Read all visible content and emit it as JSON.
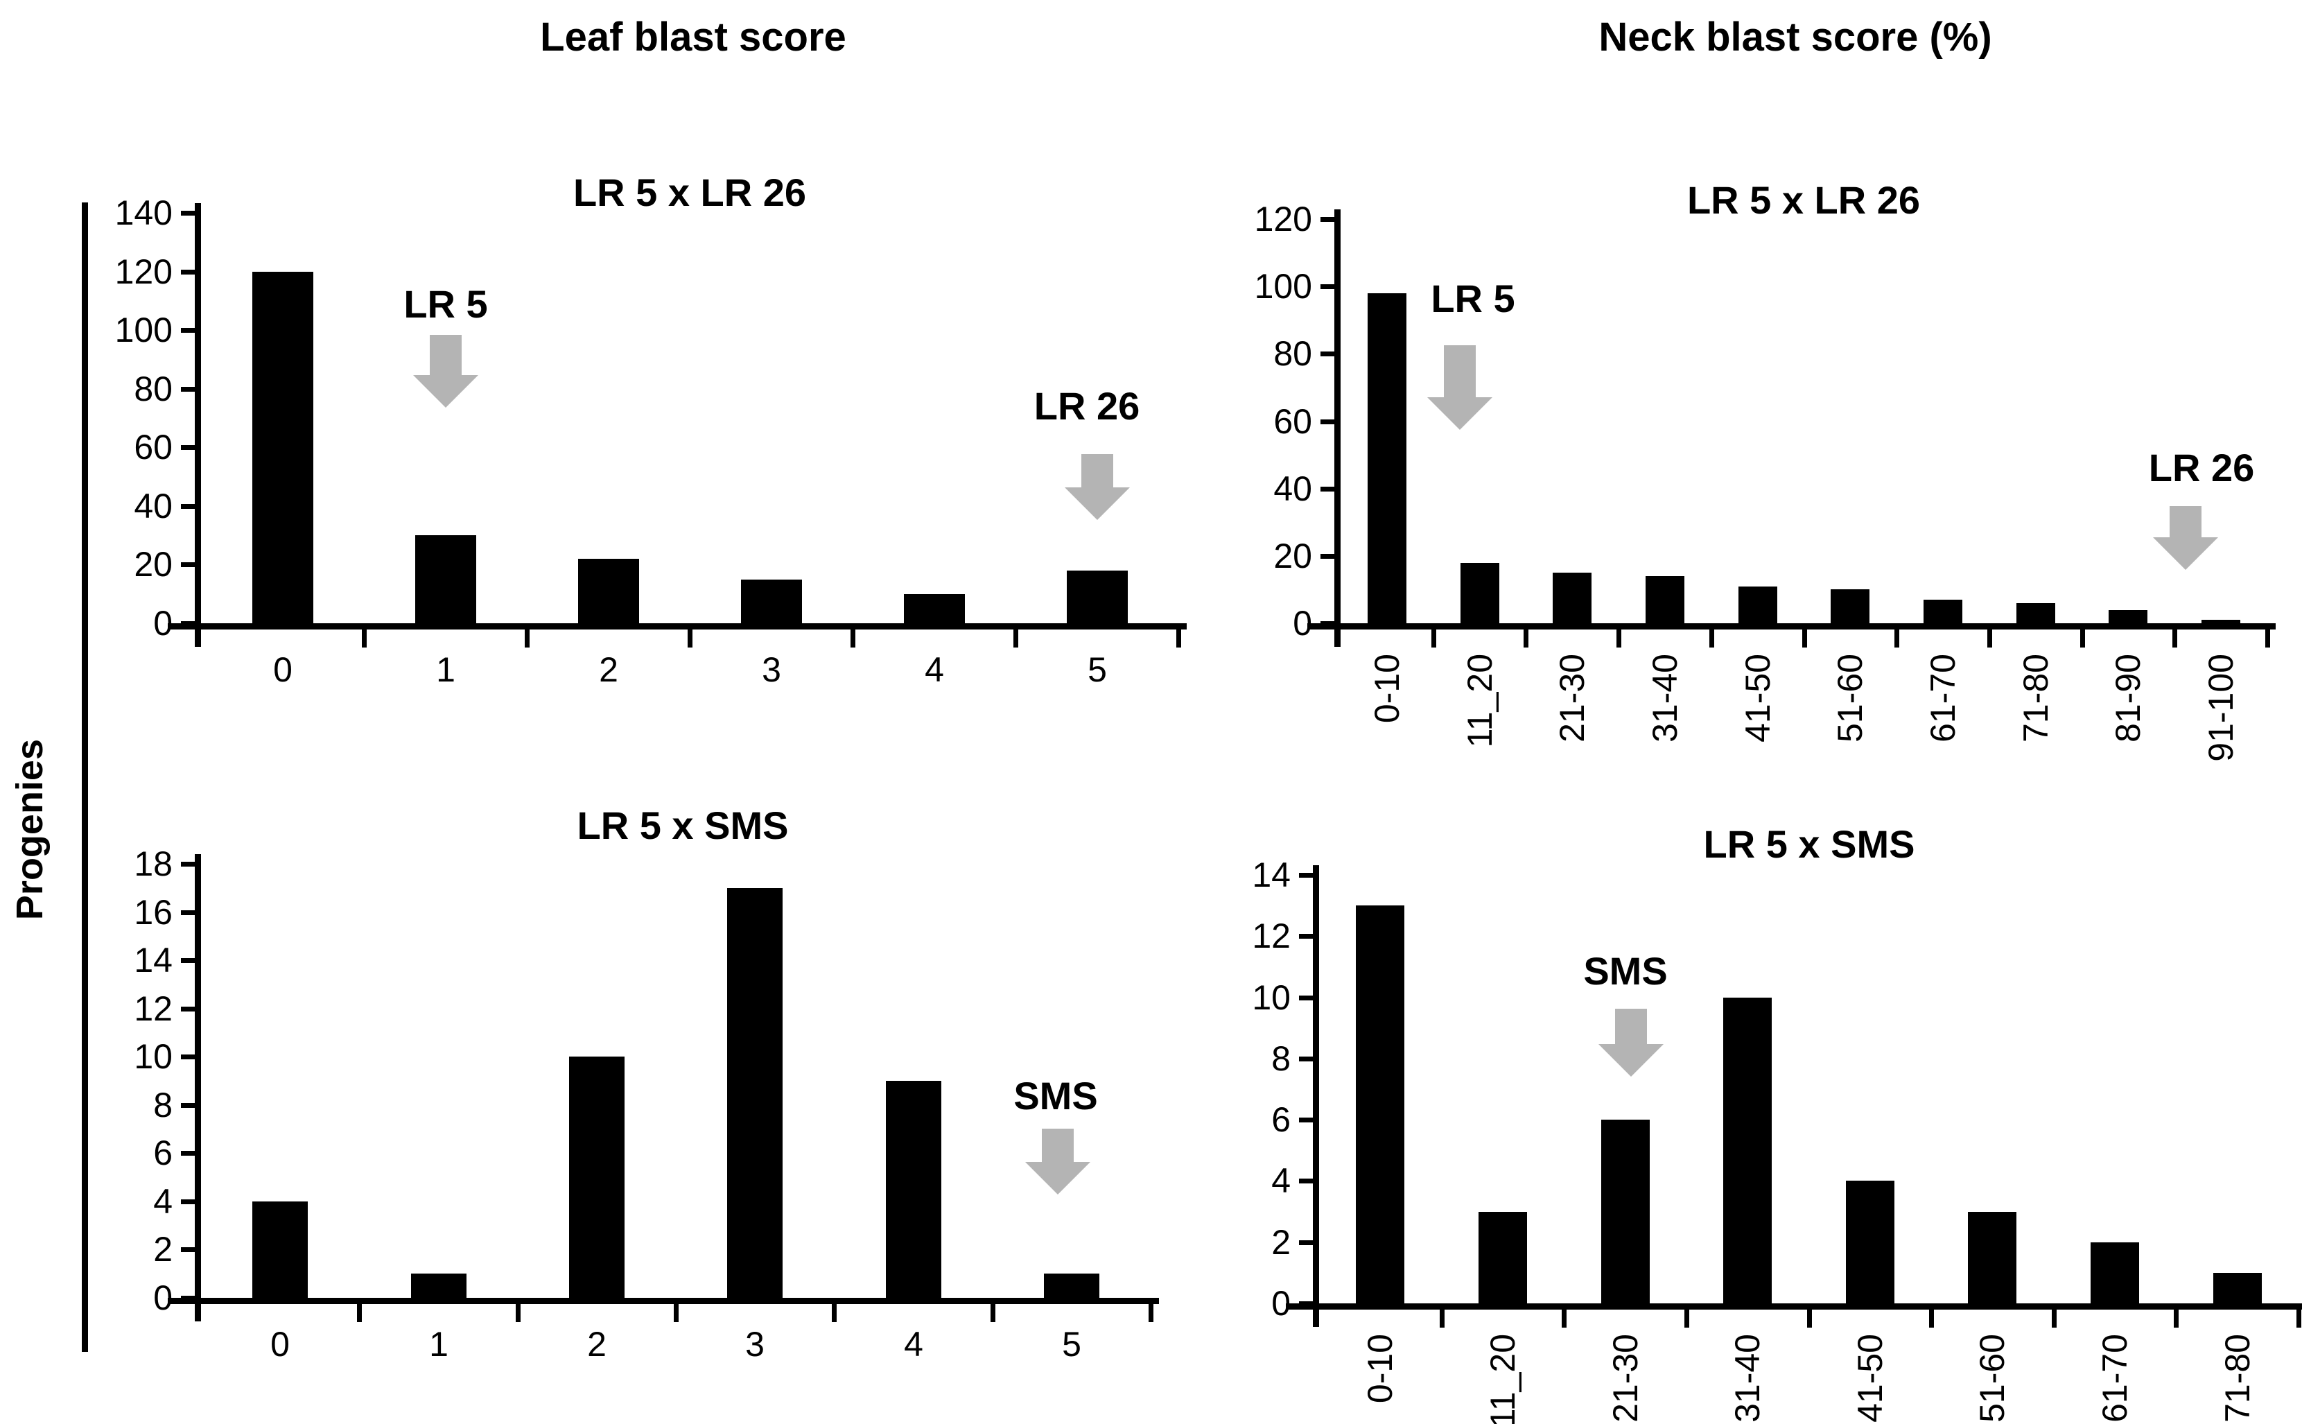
{
  "figure": {
    "columns": [
      {
        "header": "Leaf blast score"
      },
      {
        "header": "Neck blast score (%)"
      }
    ],
    "y_axis_label": "Progenies",
    "colors": {
      "bar": "#000000",
      "axis": "#000000",
      "arrow": "#b4b4b4",
      "text": "#000000",
      "background": "#ffffff"
    }
  },
  "chart_data": [
    {
      "type": "bar",
      "title": "LR 5 x LR 26",
      "column": "Leaf blast score",
      "ylabel": "Progenies",
      "categories": [
        "0",
        "1",
        "2",
        "3",
        "4",
        "5"
      ],
      "values": [
        120,
        30,
        22,
        15,
        10,
        18
      ],
      "ylim": [
        0,
        140
      ],
      "ytick_step": 20,
      "grid": false,
      "bar_color": "#000000",
      "annotations": [
        {
          "label": "LR 5",
          "category": "1"
        },
        {
          "label": "LR 26",
          "category": "5"
        }
      ]
    },
    {
      "type": "bar",
      "title": "LR 5 x LR 26",
      "column": "Neck blast score (%)",
      "ylabel": "Progenies",
      "categories": [
        "0-10",
        "11_20",
        "21-30",
        "31-40",
        "41-50",
        "51-60",
        "61-70",
        "71-80",
        "81-90",
        "91-100"
      ],
      "values": [
        98,
        18,
        15,
        14,
        11,
        10,
        7,
        6,
        4,
        1
      ],
      "ylim": [
        0,
        120
      ],
      "ytick_step": 20,
      "grid": false,
      "bar_color": "#000000",
      "xlabels_rotated": true,
      "annotations": [
        {
          "label": "LR 5",
          "category": "11_20"
        },
        {
          "label": "LR 26",
          "category": "91-100"
        }
      ]
    },
    {
      "type": "bar",
      "title": "LR 5 x SMS",
      "column": "Leaf blast score",
      "ylabel": "Progenies",
      "categories": [
        "0",
        "1",
        "2",
        "3",
        "4",
        "5"
      ],
      "values": [
        4,
        1,
        10,
        17,
        9,
        1
      ],
      "ylim": [
        0,
        18
      ],
      "ytick_step": 2,
      "grid": false,
      "bar_color": "#000000",
      "annotations": [
        {
          "label": "SMS",
          "category": "5"
        }
      ]
    },
    {
      "type": "bar",
      "title": "LR 5 x SMS",
      "column": "Neck blast score (%)",
      "ylabel": "Progenies",
      "categories": [
        "0-10",
        "11_20",
        "21-30",
        "31-40",
        "41-50",
        "51-60",
        "61-70",
        "71-80"
      ],
      "values": [
        13,
        3,
        6,
        10,
        4,
        3,
        2,
        1
      ],
      "ylim": [
        0,
        14
      ],
      "ytick_step": 2,
      "grid": false,
      "bar_color": "#000000",
      "xlabels_rotated": true,
      "annotations": [
        {
          "label": "SMS",
          "category": "21-30"
        }
      ]
    }
  ]
}
